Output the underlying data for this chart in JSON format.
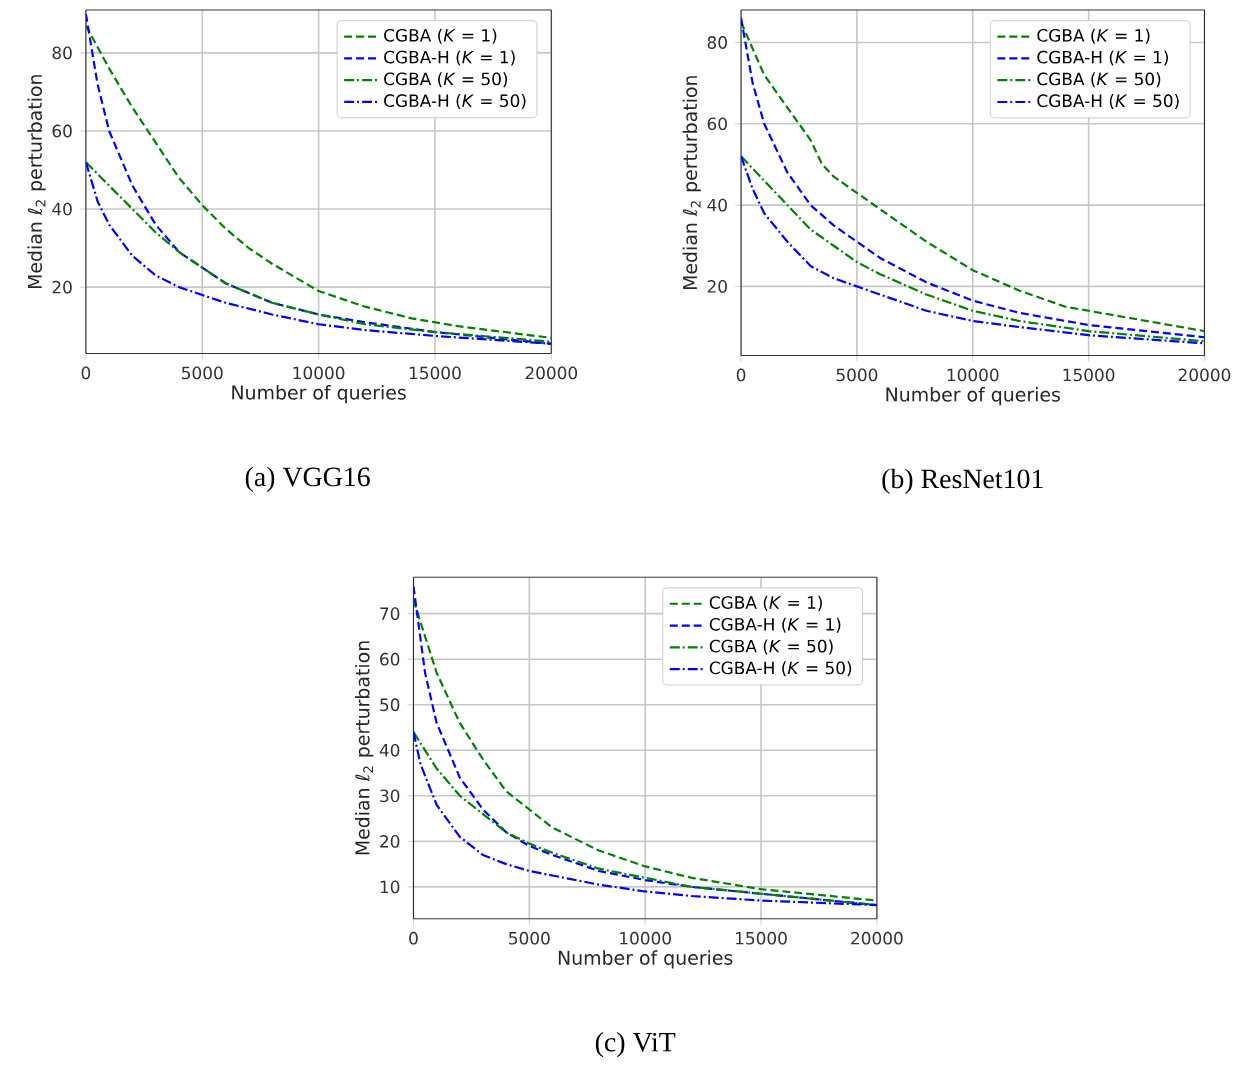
{
  "chart_data": [
    {
      "type": "line",
      "xlabel": "Number of queries",
      "ylabel": "Median *ℓ*$_{2}$ perturbation",
      "annotations": [
        "(a) VGG16"
      ],
      "xlim": [
        0,
        20000
      ],
      "ylim": [
        3,
        91
      ],
      "xticks": [
        0,
        5000,
        10000,
        15000,
        20000
      ],
      "yticks": [
        20,
        40,
        60,
        80
      ],
      "grid": true,
      "legend": "top right",
      "series": [
        {
          "name": "CGBA (*K* = 1)",
          "color": "#008000",
          "line_style": "dashed",
          "x": [
            0,
            1000,
            2000,
            3000,
            4000,
            5000,
            6000,
            7000,
            8000,
            10000,
            12000,
            14000,
            16000,
            18000,
            20000
          ],
          "values": [
            87,
            76,
            66,
            57,
            48,
            41,
            35,
            30,
            26,
            19,
            15,
            12,
            10,
            8.5,
            7
          ]
        },
        {
          "name": "CGBA-H (*K* = 1)",
          "color": "#0000ff",
          "line_style": "dashed",
          "x": [
            0,
            500,
            1000,
            2000,
            3000,
            4000,
            5000,
            6000,
            8000,
            10000,
            12000,
            15000,
            20000
          ],
          "values": [
            90,
            72,
            60,
            46,
            36,
            29,
            25,
            21,
            16,
            13,
            11,
            8.5,
            5.5
          ]
        },
        {
          "name": "CGBA (*K* = 50)",
          "color": "#008000",
          "line_style": "dashdot",
          "x": [
            0,
            1000,
            2000,
            3000,
            4000,
            5000,
            6000,
            8000,
            10000,
            12000,
            15000,
            20000
          ],
          "values": [
            52,
            46,
            40,
            34,
            29,
            25,
            21,
            16,
            13,
            10.5,
            8.5,
            6
          ]
        },
        {
          "name": "CGBA-H (*K* = 50)",
          "color": "#0000ff",
          "line_style": "dashdot",
          "x": [
            0,
            500,
            1000,
            2000,
            3000,
            4000,
            5000,
            6000,
            8000,
            10000,
            12000,
            15000,
            20000
          ],
          "values": [
            52,
            42,
            36,
            28,
            23,
            20,
            18,
            16,
            13,
            10.5,
            9,
            7.5,
            5.5
          ]
        }
      ]
    },
    {
      "type": "line",
      "xlabel": "Number of queries",
      "ylabel": "Median *ℓ*$_{2}$ perturbation",
      "annotations": [
        "(b) ResNet101"
      ],
      "xlim": [
        0,
        20000
      ],
      "ylim": [
        3,
        88
      ],
      "xticks": [
        0,
        5000,
        10000,
        15000,
        20000
      ],
      "yticks": [
        20,
        40,
        60,
        80
      ],
      "grid": true,
      "legend": "top right",
      "series": [
        {
          "name": "CGBA (*K* = 1)",
          "color": "#008000",
          "line_style": "dashed",
          "x": [
            0,
            1000,
            2000,
            3000,
            3500,
            4000,
            5000,
            6000,
            7000,
            8000,
            10000,
            12000,
            14000,
            16000,
            18000,
            20000
          ],
          "values": [
            85,
            72,
            64,
            56,
            50,
            47,
            43,
            39,
            35,
            31,
            24,
            19,
            15,
            13,
            11,
            9
          ]
        },
        {
          "name": "CGBA-H (*K* = 1)",
          "color": "#0000ff",
          "line_style": "dashed",
          "x": [
            0,
            500,
            1000,
            2000,
            3000,
            4000,
            5000,
            6000,
            8000,
            10000,
            12000,
            15000,
            20000
          ],
          "values": [
            86,
            70,
            60,
            48,
            40,
            35,
            31,
            27,
            21,
            16.5,
            13.5,
            10.5,
            7.5
          ]
        },
        {
          "name": "CGBA (*K* = 50)",
          "color": "#008000",
          "line_style": "dashdot",
          "x": [
            0,
            1000,
            2000,
            3000,
            4000,
            5000,
            6000,
            8000,
            10000,
            12000,
            15000,
            20000
          ],
          "values": [
            52,
            46,
            40,
            34,
            30,
            26,
            23,
            18,
            14,
            11.5,
            9,
            6.5
          ]
        },
        {
          "name": "CGBA-H (*K* = 50)",
          "color": "#0000ff",
          "line_style": "dashdot",
          "x": [
            0,
            500,
            1000,
            2000,
            3000,
            4000,
            5000,
            6000,
            8000,
            10000,
            12000,
            15000,
            20000
          ],
          "values": [
            52,
            44,
            38,
            31,
            25,
            22,
            20,
            18,
            14,
            11.5,
            10,
            8,
            6
          ]
        }
      ]
    },
    {
      "type": "line",
      "xlabel": "Number of queries",
      "ylabel": "Median *ℓ*$_{2}$ perturbation",
      "annotations": [
        "(c) ViT"
      ],
      "xlim": [
        0,
        20000
      ],
      "ylim": [
        3,
        78
      ],
      "xticks": [
        0,
        5000,
        10000,
        15000,
        20000
      ],
      "yticks": [
        10,
        20,
        30,
        40,
        50,
        60,
        70
      ],
      "grid": true,
      "legend": "top right",
      "series": [
        {
          "name": "CGBA (*K* = 1)",
          "color": "#008000",
          "line_style": "dashed",
          "x": [
            0,
            1000,
            2000,
            3000,
            4000,
            5000,
            6000,
            8000,
            10000,
            12000,
            15000,
            20000
          ],
          "values": [
            73,
            57,
            46,
            38,
            31,
            27,
            23,
            18,
            14.5,
            12,
            9.5,
            7
          ]
        },
        {
          "name": "CGBA-H (*K* = 1)",
          "color": "#0000ff",
          "line_style": "dashed",
          "x": [
            0,
            500,
            1000,
            2000,
            3000,
            4000,
            5000,
            6000,
            8000,
            10000,
            12000,
            15000,
            20000
          ],
          "values": [
            76,
            57,
            46,
            34,
            27,
            22,
            19,
            17,
            13.5,
            11.5,
            10,
            8.5,
            6
          ]
        },
        {
          "name": "CGBA (*K* = 50)",
          "color": "#008000",
          "line_style": "dashdot",
          "x": [
            0,
            1000,
            2000,
            3000,
            4000,
            5000,
            6000,
            8000,
            10000,
            12000,
            15000,
            20000
          ],
          "values": [
            44,
            36,
            30,
            26,
            22,
            19.5,
            17.5,
            14,
            12,
            10,
            8.5,
            6
          ]
        },
        {
          "name": "CGBA-H (*K* = 50)",
          "color": "#0000ff",
          "line_style": "dashdot",
          "x": [
            0,
            300,
            1000,
            2000,
            3000,
            4000,
            5000,
            6000,
            8000,
            10000,
            12000,
            15000,
            20000
          ],
          "values": [
            44,
            37,
            28,
            21,
            17,
            15,
            13.5,
            12.5,
            10.5,
            9,
            8,
            7,
            6
          ]
        }
      ]
    }
  ]
}
